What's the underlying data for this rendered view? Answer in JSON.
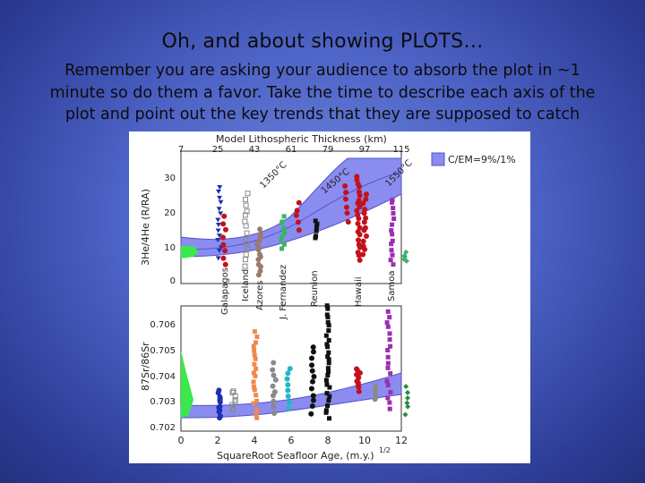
{
  "slide": {
    "title": "Oh, and about showing PLOTS…",
    "body_lines": [
      "Remember you are asking your audience to absorb the plot in ~1",
      "minute so do them a favor.  Take the time to describe each axis of the",
      "plot and point out the key trends that they are supposed to catch"
    ]
  },
  "figure": {
    "top_axis_title": "Model Lithospheric Thickness (km)",
    "top_axis_ticks": [
      "7",
      "25",
      "43",
      "61",
      "79",
      "97",
      "115"
    ],
    "bottom_axis_title": "SquareRoot Seafloor Age, (m.y.)",
    "bottom_axis_exponent": "1/2",
    "bottom_axis_ticks": [
      "0",
      "2",
      "4",
      "6",
      "8",
      "10",
      "12"
    ],
    "upper_panel": {
      "ylabel": "3He/4He (R/RA)",
      "yticks": [
        "0",
        "10",
        "20",
        "30"
      ],
      "legend": "C/EM=9%/1%",
      "isotherms": [
        "1350°C",
        "1450°C",
        "1550°C"
      ],
      "localities": [
        "Galapagos",
        "Iceland",
        "Azores",
        "J. Fernandez",
        "Reunion",
        "Hawaii",
        "Samoa"
      ]
    },
    "lower_panel": {
      "ylabel": "87Sr/86Sr",
      "yticks": [
        "0.702",
        "0.703",
        "0.704",
        "0.705",
        "0.706"
      ]
    },
    "colors": {
      "band_fill": "#8b8cf0",
      "band_edge": "#5455c8",
      "galapagos": "#1d2fb0",
      "iceland": "#8a8a8a",
      "azores": "#9a7a6e",
      "j_fernandez": "#3bb36a",
      "reunion": "#111111",
      "hawaii": "#c4111b",
      "samoa": "#9c2fb2",
      "histogram": "#39e84a"
    }
  }
}
